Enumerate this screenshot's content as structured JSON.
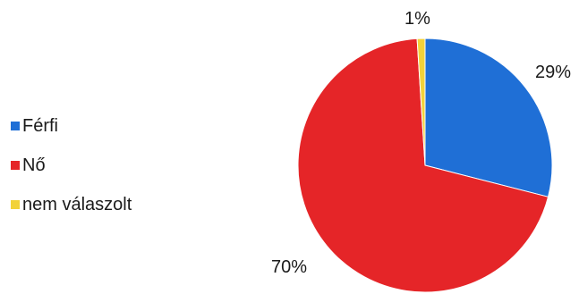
{
  "chart_data": {
    "type": "pie",
    "categories": [
      "Férfi",
      "Nő",
      "nem válaszolt"
    ],
    "values": [
      29,
      70,
      1
    ],
    "labels": [
      "29%",
      "70%",
      "1%"
    ],
    "colors": [
      "#1f6fd6",
      "#e52528",
      "#f2d23a"
    ],
    "legend_position": "left"
  }
}
